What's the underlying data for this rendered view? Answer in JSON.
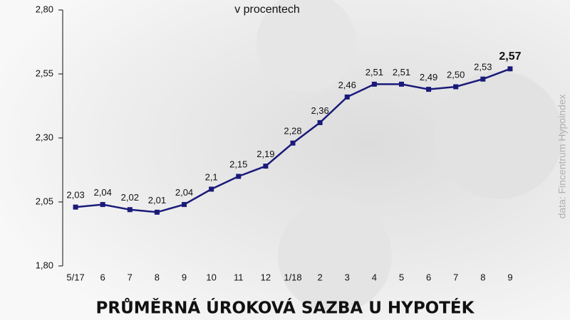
{
  "chart_data": {
    "type": "line",
    "title": "PRŮMĚRNÁ ÚROKOVÁ SAZBA U HYPOTÉK",
    "subtitle": "v procentech",
    "source": "data: Fincentrum Hypoindex",
    "categories": [
      "5/17",
      "6",
      "7",
      "8",
      "9",
      "10",
      "11",
      "12",
      "1/18",
      "2",
      "3",
      "4",
      "5",
      "6",
      "7",
      "8",
      "9"
    ],
    "values": [
      2.03,
      2.04,
      2.02,
      2.01,
      2.04,
      2.1,
      2.15,
      2.19,
      2.28,
      2.36,
      2.46,
      2.51,
      2.51,
      2.49,
      2.5,
      2.53,
      2.57
    ],
    "value_labels": [
      "2,03",
      "2,04",
      "2,02",
      "2,01",
      "2,04",
      "2,1",
      "2,15",
      "2,19",
      "2,28",
      "2,36",
      "2,46",
      "2,51",
      "2,51",
      "2,49",
      "2,50",
      "2,53",
      "2,57"
    ],
    "color": "#1a1a7a",
    "ylim": [
      1.8,
      2.8
    ],
    "yticks": [
      {
        "value": 1.8,
        "label": "1,80"
      },
      {
        "value": 2.05,
        "label": "2,05"
      },
      {
        "value": 2.3,
        "label": "2,30"
      },
      {
        "value": 2.55,
        "label": "2,55"
      },
      {
        "value": 2.8,
        "label": "2,80"
      }
    ],
    "grid": false
  }
}
